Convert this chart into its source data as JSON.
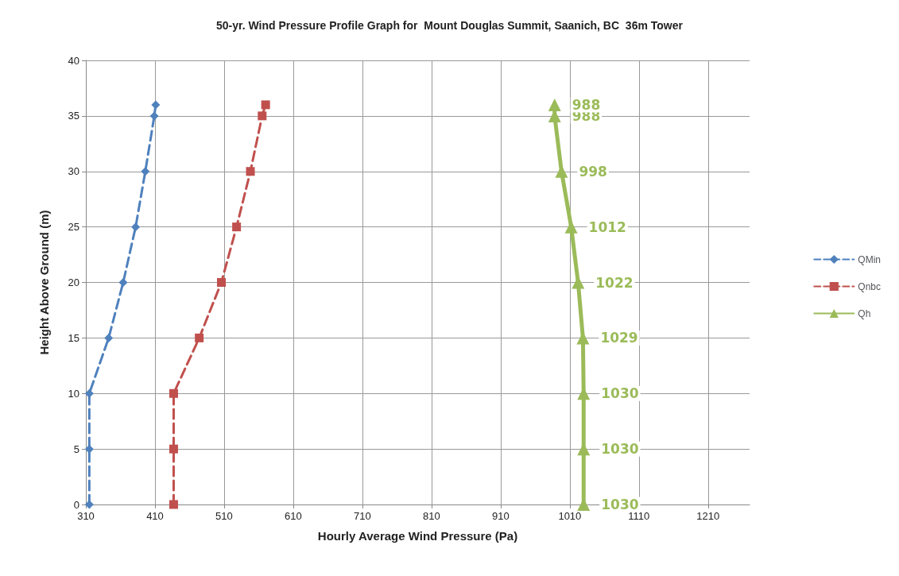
{
  "chart_data": {
    "type": "line",
    "orientation": "horizontal",
    "title": "50-yr. Wind Pressure Profile Graph for  Mount Douglas Summit, Saanich, BC  36m Tower",
    "xlabel": "Hourly Average Wind Pressure (Pa)",
    "ylabel": "Height Above Ground (m)",
    "series": [
      {
        "name": "QMin",
        "color": "#4f81bd",
        "marker": "diamond",
        "line_style": "dashed",
        "x": [
          0,
          5,
          10,
          15,
          20,
          25,
          30,
          35,
          36
        ],
        "values": [
          315,
          315,
          315,
          343,
          364,
          382,
          396,
          409,
          411
        ]
      },
      {
        "name": "Qnbc",
        "color": "#c0504d",
        "marker": "square",
        "line_style": "dashed",
        "x": [
          0,
          5,
          10,
          15,
          20,
          25,
          30,
          35,
          36
        ],
        "values": [
          437,
          437,
          437,
          474,
          506,
          528,
          548,
          565,
          570
        ]
      },
      {
        "name": "Qh",
        "color": "#9bbb59",
        "marker": "triangle",
        "line_style": "solid",
        "x": [
          0,
          5,
          10,
          15,
          20,
          25,
          30,
          35,
          36
        ],
        "values": [
          1030,
          1030,
          1030,
          1029,
          1022,
          1012,
          998,
          988,
          988
        ],
        "value_labels": [
          "1030",
          "1030",
          "1030",
          "1029",
          "1022",
          "1012",
          "998",
          "988",
          "988"
        ]
      }
    ],
    "xlim": [
      310,
      1270
    ],
    "xticks": [
      310,
      410,
      510,
      610,
      710,
      810,
      910,
      1010,
      1110,
      1210
    ],
    "ylim": [
      0,
      40
    ],
    "yticks": [
      0,
      5,
      10,
      15,
      20,
      25,
      30,
      35,
      40
    ],
    "grid": true,
    "legend": "right"
  }
}
